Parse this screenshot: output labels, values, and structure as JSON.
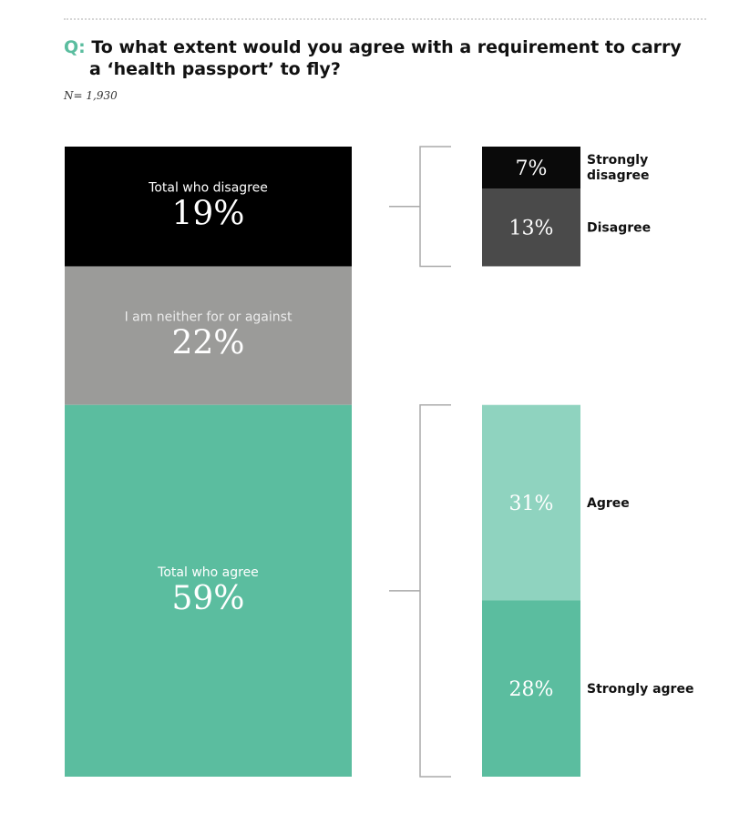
{
  "question": {
    "prefix": "Q:",
    "line1": "To what extent would you agree with a requirement to carry",
    "line2": "a ‘health passport’ to fly?"
  },
  "sample": "N= 1,930",
  "colors": {
    "disagree_total": "#000000",
    "neither": "#9b9b99",
    "agree_total": "#5bbd9f",
    "strongly_disagree": "#0a0a0a",
    "disagree": "#4a4a4a",
    "agree": "#8fd3bf",
    "strongly_agree": "#5bbd9f",
    "bracket": "#aaaaaa"
  },
  "chart_data": [
    {
      "type": "bar",
      "stacking": "100%",
      "segments": [
        {
          "label": "Total who disagree",
          "value": 19,
          "display": "19%"
        },
        {
          "label": "I am neither for or against",
          "value": 22,
          "display": "22%"
        },
        {
          "label": "Total who agree",
          "value": 59,
          "display": "59%"
        }
      ]
    },
    {
      "type": "bar",
      "stacking": "stacked",
      "segments": [
        {
          "label": "Strongly disagree",
          "value": 7,
          "display": "7%"
        },
        {
          "label": "Disagree",
          "value": 13,
          "display": "13%"
        },
        {
          "label": "Agree",
          "value": 31,
          "display": "31%"
        },
        {
          "label": "Strongly agree",
          "value": 28,
          "display": "28%"
        }
      ]
    }
  ]
}
